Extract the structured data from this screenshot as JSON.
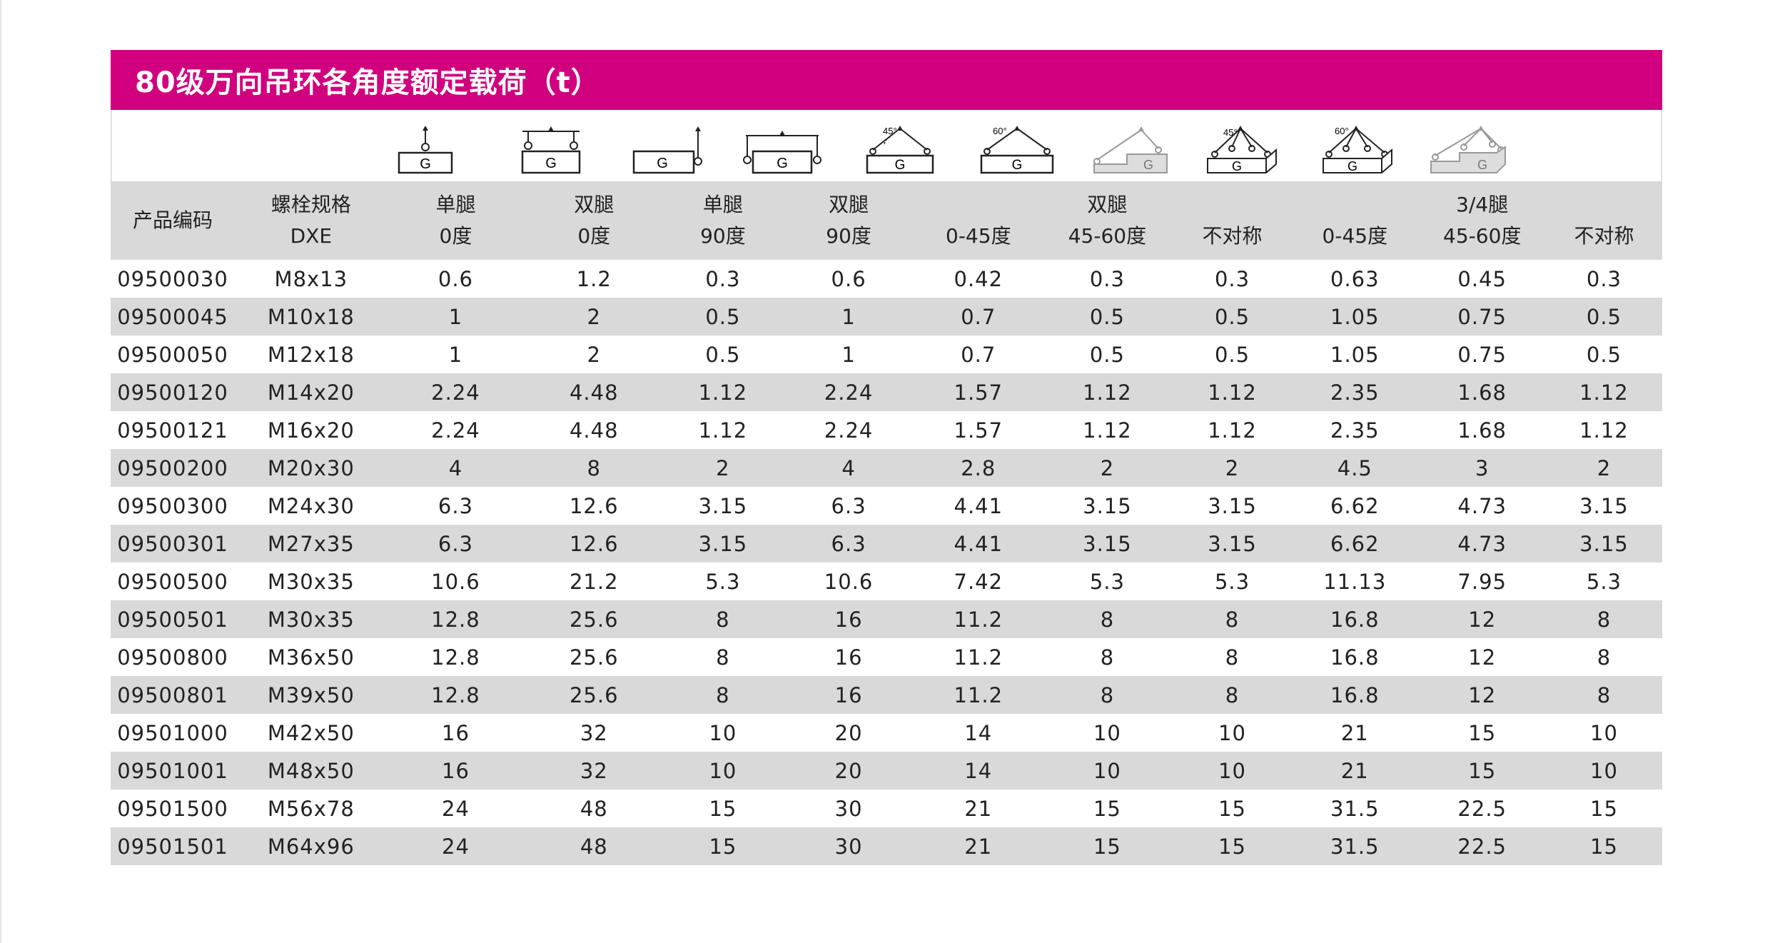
{
  "title": "80级万向吊环各角度额定载荷（t）",
  "header": {
    "code": "产品编码",
    "bolt_line1": "螺栓规格",
    "bolt_line2": "DXE",
    "single_0_l1": "单腿",
    "single_0_l2": "0度",
    "double_0_l1": "双腿",
    "double_0_l2": "0度",
    "single_90_l1": "单腿",
    "single_90_l2": "90度",
    "double_90_l1": "双腿",
    "double_90_l2": "90度",
    "double_group": "双腿",
    "double_0_45": "0-45度",
    "double_45_60": "45-60度",
    "double_asym": "不对称",
    "three_four_group": "3/4腿",
    "tf_0_45": "0-45度",
    "tf_45_60": "45-60度",
    "tf_asym": "不对称"
  },
  "icons": [
    "single-leg-0-icon",
    "double-leg-0-icon",
    "single-leg-90-icon",
    "double-leg-90-icon",
    "double-leg-45-icon",
    "double-leg-60-icon",
    "double-leg-asymmetric-icon",
    "multi-leg-45-icon",
    "multi-leg-60-icon",
    "multi-leg-asymmetric-icon"
  ],
  "icon_labels": {
    "deg45": "45°",
    "deg60": "60°",
    "G": "G"
  },
  "rows": [
    [
      "09500030",
      "M8x13",
      "0.6",
      "1.2",
      "0.3",
      "0.6",
      "0.42",
      "0.3",
      "0.3",
      "0.63",
      "0.45",
      "0.3"
    ],
    [
      "09500045",
      "M10x18",
      "1",
      "2",
      "0.5",
      "1",
      "0.7",
      "0.5",
      "0.5",
      "1.05",
      "0.75",
      "0.5"
    ],
    [
      "09500050",
      "M12x18",
      "1",
      "2",
      "0.5",
      "1",
      "0.7",
      "0.5",
      "0.5",
      "1.05",
      "0.75",
      "0.5"
    ],
    [
      "09500120",
      "M14x20",
      "2.24",
      "4.48",
      "1.12",
      "2.24",
      "1.57",
      "1.12",
      "1.12",
      "2.35",
      "1.68",
      "1.12"
    ],
    [
      "09500121",
      "M16x20",
      "2.24",
      "4.48",
      "1.12",
      "2.24",
      "1.57",
      "1.12",
      "1.12",
      "2.35",
      "1.68",
      "1.12"
    ],
    [
      "09500200",
      "M20x30",
      "4",
      "8",
      "2",
      "4",
      "2.8",
      "2",
      "2",
      "4.5",
      "3",
      "2"
    ],
    [
      "09500300",
      "M24x30",
      "6.3",
      "12.6",
      "3.15",
      "6.3",
      "4.41",
      "3.15",
      "3.15",
      "6.62",
      "4.73",
      "3.15"
    ],
    [
      "09500301",
      "M27x35",
      "6.3",
      "12.6",
      "3.15",
      "6.3",
      "4.41",
      "3.15",
      "3.15",
      "6.62",
      "4.73",
      "3.15"
    ],
    [
      "09500500",
      "M30x35",
      "10.6",
      "21.2",
      "5.3",
      "10.6",
      "7.42",
      "5.3",
      "5.3",
      "11.13",
      "7.95",
      "5.3"
    ],
    [
      "09500501",
      "M30x35",
      "12.8",
      "25.6",
      "8",
      "16",
      "11.2",
      "8",
      "8",
      "16.8",
      "12",
      "8"
    ],
    [
      "09500800",
      "M36x50",
      "12.8",
      "25.6",
      "8",
      "16",
      "11.2",
      "8",
      "8",
      "16.8",
      "12",
      "8"
    ],
    [
      "09500801",
      "M39x50",
      "12.8",
      "25.6",
      "8",
      "16",
      "11.2",
      "8",
      "8",
      "16.8",
      "12",
      "8"
    ],
    [
      "09501000",
      "M42x50",
      "16",
      "32",
      "10",
      "20",
      "14",
      "10",
      "10",
      "21",
      "15",
      "10"
    ],
    [
      "09501001",
      "M48x50",
      "16",
      "32",
      "10",
      "20",
      "14",
      "10",
      "10",
      "21",
      "15",
      "10"
    ],
    [
      "09501500",
      "M56x78",
      "24",
      "48",
      "15",
      "30",
      "21",
      "15",
      "15",
      "31.5",
      "22.5",
      "15"
    ],
    [
      "09501501",
      "M64x96",
      "24",
      "48",
      "15",
      "30",
      "21",
      "15",
      "15",
      "31.5",
      "22.5",
      "15"
    ]
  ]
}
